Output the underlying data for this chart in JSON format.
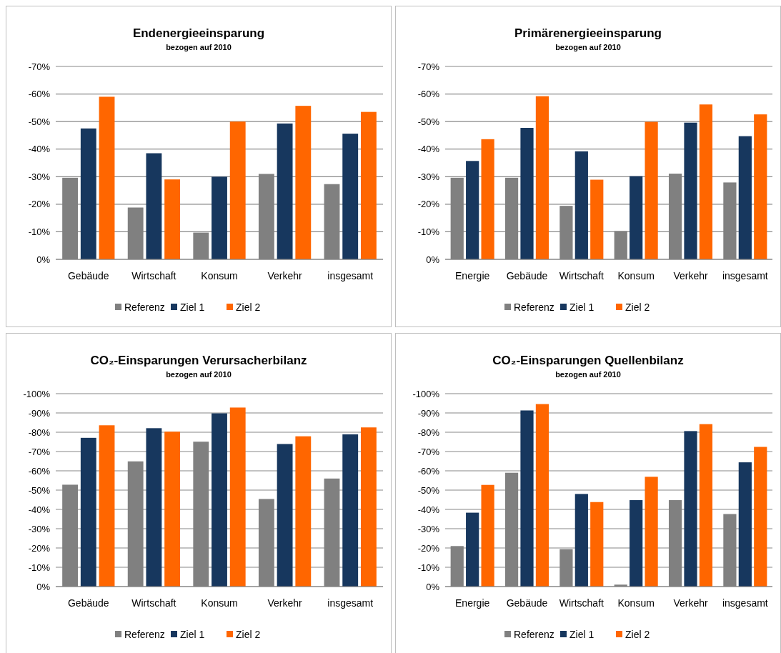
{
  "chart_data": [
    {
      "type": "bar",
      "title": "Endenergieeinsparung",
      "subtitle": "bezogen auf 2010",
      "categories": [
        "Gebäude",
        "Wirtschaft",
        "Konsum",
        "Verkehr",
        "insgesamt"
      ],
      "series": [
        {
          "name": "Referenz",
          "color": "#808080",
          "values": [
            -29.6,
            -18.8,
            -9.7,
            -31,
            -27.3
          ]
        },
        {
          "name": "Ziel 1",
          "color": "#17375e",
          "values": [
            -47.5,
            -38.5,
            -30,
            -49.3,
            -45.6
          ]
        },
        {
          "name": "Ziel 2",
          "color": "#ff6600",
          "values": [
            -59,
            -29,
            -50,
            -55.7,
            -53.5
          ]
        }
      ],
      "ylim": [
        0,
        -70
      ],
      "yticks": [
        {
          "value": 0,
          "label": "0%"
        },
        {
          "value": -10,
          "label": "-10%"
        },
        {
          "value": -20,
          "label": "-20%"
        },
        {
          "value": -30,
          "label": "-30%"
        },
        {
          "value": -40,
          "label": "-40%"
        },
        {
          "value": -50,
          "label": "-50%"
        },
        {
          "value": -60,
          "label": "-60%"
        },
        {
          "value": -70,
          "label": "-70%"
        }
      ],
      "grid": "y",
      "legend": "bottom"
    },
    {
      "type": "bar",
      "title": "Primärenergieeinsparung",
      "subtitle": "bezogen auf 2010",
      "categories": [
        "Energie",
        "Gebäude",
        "Wirtschaft",
        "Konsum",
        "Verkehr",
        "insgesamt"
      ],
      "series": [
        {
          "name": "Referenz",
          "color": "#808080",
          "values": [
            -29.6,
            -29.6,
            -19.4,
            -10.3,
            -31.1,
            -27.9
          ]
        },
        {
          "name": "Ziel 1",
          "color": "#17375e",
          "values": [
            -35.7,
            -47.7,
            -39.2,
            -30.2,
            -49.6,
            -44.7
          ]
        },
        {
          "name": "Ziel 2",
          "color": "#ff6600",
          "values": [
            -43.6,
            -59.2,
            -28.9,
            -49.9,
            -56.2,
            -52.6
          ]
        }
      ],
      "ylim": [
        0,
        -70
      ],
      "yticks": [
        {
          "value": 0,
          "label": "0%"
        },
        {
          "value": -10,
          "label": "-10%"
        },
        {
          "value": -20,
          "label": "-20%"
        },
        {
          "value": -30,
          "label": "-30%"
        },
        {
          "value": -40,
          "label": "-40%"
        },
        {
          "value": -50,
          "label": "-50%"
        },
        {
          "value": -60,
          "label": "-60%"
        },
        {
          "value": -70,
          "label": "-70%"
        }
      ],
      "grid": "y",
      "legend": "bottom"
    },
    {
      "type": "bar",
      "title": "CO₂-Einsparungen Verursacherbilanz",
      "subtitle": "bezogen auf 2010",
      "categories": [
        "Gebäude",
        "Wirtschaft",
        "Konsum",
        "Verkehr",
        "insgesamt"
      ],
      "series": [
        {
          "name": "Referenz",
          "color": "#808080",
          "values": [
            -52.8,
            -64.9,
            -75.1,
            -45.4,
            -56
          ]
        },
        {
          "name": "Ziel 1",
          "color": "#17375e",
          "values": [
            -77.1,
            -82.1,
            -89.8,
            -73.9,
            -78.9
          ]
        },
        {
          "name": "Ziel 2",
          "color": "#ff6600",
          "values": [
            -83.6,
            -80.3,
            -92.8,
            -77.9,
            -82.5
          ]
        }
      ],
      "ylim": [
        0,
        -100
      ],
      "yticks": [
        {
          "value": 0,
          "label": "0%"
        },
        {
          "value": -10,
          "label": "-10%"
        },
        {
          "value": -20,
          "label": "-20%"
        },
        {
          "value": -30,
          "label": "-30%"
        },
        {
          "value": -40,
          "label": "-40%"
        },
        {
          "value": -50,
          "label": "-50%"
        },
        {
          "value": -60,
          "label": "-60%"
        },
        {
          "value": -70,
          "label": "-70%"
        },
        {
          "value": -80,
          "label": "-80%"
        },
        {
          "value": -90,
          "label": "-90%"
        },
        {
          "value": -100,
          "label": "-100%"
        }
      ],
      "grid": "y",
      "legend": "bottom"
    },
    {
      "type": "bar",
      "title": "CO₂-Einsparungen Quellenbilanz",
      "subtitle": "bezogen auf 2010",
      "categories": [
        "Energie",
        "Gebäude",
        "Wirtschaft",
        "Konsum",
        "Verkehr",
        "insgesamt"
      ],
      "series": [
        {
          "name": "Referenz",
          "color": "#808080",
          "values": [
            -21,
            -59,
            -19.4,
            -1,
            -44.8,
            -37.6
          ]
        },
        {
          "name": "Ziel 1",
          "color": "#17375e",
          "values": [
            -38.3,
            -91.3,
            -48,
            -44.8,
            -80.6,
            -64.4
          ]
        },
        {
          "name": "Ziel 2",
          "color": "#ff6600",
          "values": [
            -52.7,
            -94.6,
            -43.8,
            -56.9,
            -84.2,
            -72.4
          ]
        }
      ],
      "ylim": [
        0,
        -100
      ],
      "yticks": [
        {
          "value": 0,
          "label": "0%"
        },
        {
          "value": -10,
          "label": "-10%"
        },
        {
          "value": -20,
          "label": "-20%"
        },
        {
          "value": -30,
          "label": "-30%"
        },
        {
          "value": -40,
          "label": "-40%"
        },
        {
          "value": -50,
          "label": "-50%"
        },
        {
          "value": -60,
          "label": "-60%"
        },
        {
          "value": -70,
          "label": "-70%"
        },
        {
          "value": -80,
          "label": "-80%"
        },
        {
          "value": -90,
          "label": "-90%"
        },
        {
          "value": -100,
          "label": "-100%"
        }
      ],
      "grid": "y",
      "legend": "bottom"
    }
  ]
}
